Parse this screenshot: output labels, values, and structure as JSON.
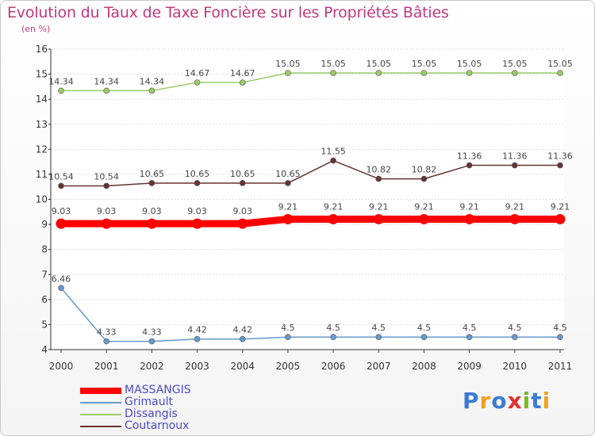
{
  "header": {
    "title": "Evolution du Taux de Taxe Foncière sur les Propriétés Bâties",
    "unit": "(en %)"
  },
  "logo": {
    "text": "Proxiti"
  },
  "chart_data": {
    "type": "line",
    "title": "Evolution du Taux de Taxe Foncière sur les Propriétés Bâties",
    "ylabel": "(en %)",
    "xlabel": "",
    "x": [
      "2000",
      "2001",
      "2002",
      "2003",
      "2004",
      "2005",
      "2006",
      "2007",
      "2008",
      "2009",
      "2010",
      "2011"
    ],
    "ylim": [
      4,
      16
    ],
    "yticks": [
      "4",
      "5",
      "6",
      "7",
      "8",
      "9",
      "10",
      "11",
      "12",
      "13",
      "14",
      "15",
      "16"
    ],
    "grid": "horizontal",
    "legend_position": "bottom-left",
    "series": [
      {
        "name": "MASSANGIS",
        "color": "#ff0000",
        "emphasis": true,
        "values": [
          9.03,
          9.03,
          9.03,
          9.03,
          9.03,
          9.21,
          9.21,
          9.21,
          9.21,
          9.21,
          9.21,
          9.21
        ],
        "labels": [
          "9.03",
          "9.03",
          "9.03",
          "9.03",
          "9.03",
          "9.21",
          "9.21",
          "9.21",
          "9.21",
          "9.21",
          "9.21",
          "9.21"
        ]
      },
      {
        "name": "Grimault",
        "color": "#6699cc",
        "emphasis": false,
        "values": [
          6.46,
          4.33,
          4.33,
          4.42,
          4.42,
          4.5,
          4.5,
          4.5,
          4.5,
          4.5,
          4.5,
          4.5
        ],
        "labels": [
          "6.46",
          "4.33",
          "4.33",
          "4.42",
          "4.42",
          "4.5",
          "4.5",
          "4.5",
          "4.5",
          "4.5",
          "4.5",
          "4.5"
        ]
      },
      {
        "name": "Dissangis",
        "color": "#99cc66",
        "emphasis": false,
        "values": [
          14.34,
          14.34,
          14.34,
          14.67,
          14.67,
          15.05,
          15.05,
          15.05,
          15.05,
          15.05,
          15.05,
          15.05
        ],
        "labels": [
          "14.34",
          "14.34",
          "14.34",
          "14.67",
          "14.67",
          "15.05",
          "15.05",
          "15.05",
          "15.05",
          "15.05",
          "15.05",
          "15.05"
        ]
      },
      {
        "name": "Coutarnoux",
        "color": "#663333",
        "emphasis": false,
        "values": [
          10.54,
          10.54,
          10.65,
          10.65,
          10.65,
          10.65,
          11.55,
          10.82,
          10.82,
          11.36,
          11.36,
          11.36
        ],
        "labels": [
          "10.54",
          "10.54",
          "10.65",
          "10.65",
          "10.65",
          "10.65",
          "11.55",
          "10.82",
          "10.82",
          "11.36",
          "11.36",
          "11.36"
        ]
      }
    ]
  }
}
